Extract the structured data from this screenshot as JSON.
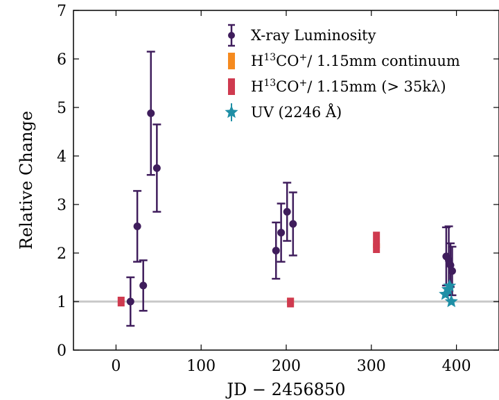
{
  "chart_data": {
    "type": "scatter",
    "xlabel": "JD − 2456850",
    "ylabel": "Relative Change",
    "xlim": [
      -50,
      450
    ],
    "ylim": [
      0,
      7
    ],
    "x_ticks": [
      0,
      100,
      200,
      300,
      400
    ],
    "y_ticks": [
      0,
      1,
      2,
      3,
      4,
      5,
      6,
      7
    ],
    "grid": false,
    "reference_line": {
      "y": 1,
      "color": "#c8c8c8"
    },
    "legend_position": "top-right",
    "series": [
      {
        "name": "X-ray Luminosity",
        "legend_label": "X-ray Luminosity",
        "marker": "circle-errorbar",
        "color": "#3f1d5c",
        "points": [
          {
            "x": 17,
            "y": 1.0,
            "yerr": 0.5
          },
          {
            "x": 25,
            "y": 2.55,
            "yerr": 0.73
          },
          {
            "x": 32,
            "y": 1.33,
            "yerr": 0.52
          },
          {
            "x": 41,
            "y": 4.88,
            "yerr": 1.27
          },
          {
            "x": 48,
            "y": 3.75,
            "yerr": 0.9
          },
          {
            "x": 188,
            "y": 2.05,
            "yerr": 0.58
          },
          {
            "x": 194,
            "y": 2.42,
            "yerr": 0.6
          },
          {
            "x": 201,
            "y": 2.85,
            "yerr": 0.6
          },
          {
            "x": 208,
            "y": 2.6,
            "yerr": 0.65
          },
          {
            "x": 388,
            "y": 1.93,
            "yerr": 0.6
          },
          {
            "x": 391,
            "y": 1.85,
            "yerr": 0.7
          },
          {
            "x": 393,
            "y": 1.75,
            "yerr": 0.45
          },
          {
            "x": 395,
            "y": 1.63,
            "yerr": 0.5
          }
        ]
      },
      {
        "name": "H13CO+ / 1.15mm continuum",
        "legend_parts": [
          "H",
          "13",
          "CO",
          "+",
          "/ 1.15mm continuum"
        ],
        "marker": "bar-segment",
        "color": "#f58a1f",
        "points": [
          {
            "x": 205,
            "y": 1.0,
            "yerr": 0.08
          },
          {
            "x": 306,
            "y": 2.15,
            "yerr": 0.05
          }
        ]
      },
      {
        "name": "H13CO+ / 1.15mm (> 35kλ)",
        "legend_parts": [
          "H",
          "13",
          "CO",
          "+",
          "/ 1.15mm (> 35kλ)"
        ],
        "marker": "bar-segment",
        "color": "#cf3a4f",
        "points": [
          {
            "x": 6,
            "y": 1.0,
            "yerr": 0.1
          },
          {
            "x": 205,
            "y": 0.98,
            "yerr": 0.1
          },
          {
            "x": 306,
            "y": 2.22,
            "yerr": 0.22
          }
        ]
      },
      {
        "name": "UV (2246 Å)",
        "legend_label": "UV (2246 Å)",
        "marker": "star",
        "color": "#1f8fa6",
        "points": [
          {
            "x": 387,
            "y": 1.15
          },
          {
            "x": 390,
            "y": 1.25
          },
          {
            "x": 392,
            "y": 1.32
          },
          {
            "x": 394,
            "y": 1.0
          }
        ]
      }
    ]
  }
}
